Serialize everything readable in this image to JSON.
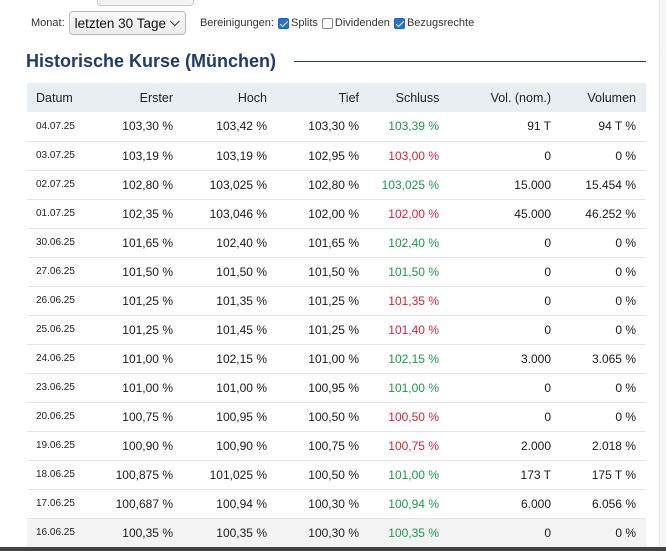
{
  "controls": {
    "monat_label": "Monat:",
    "monat_value": "letzten 30 Tage",
    "bereinigungen_label": "Bereinigungen:",
    "splits_label": "Splits",
    "splits_checked": true,
    "dividenden_label": "Dividenden",
    "dividenden_checked": false,
    "bezugsrechte_label": "Bezugsrechte",
    "bezugsrechte_checked": true
  },
  "heading": "Historische Kurse (München)",
  "colors": {
    "heading": "#1d3c6a",
    "up": "#1a9a49",
    "down": "#d8233a",
    "header_bg": "#e9eef3",
    "checkbox_on": "#1a73e8"
  },
  "table": {
    "columns": [
      "Datum",
      "Erster",
      "Hoch",
      "Tief",
      "Schluss",
      "Vol. (nom.)",
      "Volumen"
    ],
    "rows": [
      {
        "date": "04.07.25",
        "open": "103,30 %",
        "high": "103,42 %",
        "low": "103,30 %",
        "close": "103,39 %",
        "trend": "up",
        "vol_nom": "91 T",
        "volume": "94 T %"
      },
      {
        "date": "03.07.25",
        "open": "103,19 %",
        "high": "103,19 %",
        "low": "102,95 %",
        "close": "103,00 %",
        "trend": "down",
        "vol_nom": "0",
        "volume": "0 %"
      },
      {
        "date": "02.07.25",
        "open": "102,80 %",
        "high": "103,025 %",
        "low": "102,80 %",
        "close": "103,025 %",
        "trend": "up",
        "vol_nom": "15.000",
        "volume": "15.454 %"
      },
      {
        "date": "01.07.25",
        "open": "102,35 %",
        "high": "103,046 %",
        "low": "102,00 %",
        "close": "102,00 %",
        "trend": "down",
        "vol_nom": "45.000",
        "volume": "46.252 %"
      },
      {
        "date": "30.06.25",
        "open": "101,65 %",
        "high": "102,40 %",
        "low": "101,65 %",
        "close": "102,40 %",
        "trend": "up",
        "vol_nom": "0",
        "volume": "0 %"
      },
      {
        "date": "27.06.25",
        "open": "101,50 %",
        "high": "101,50 %",
        "low": "101,50 %",
        "close": "101,50 %",
        "trend": "up",
        "vol_nom": "0",
        "volume": "0 %"
      },
      {
        "date": "26.06.25",
        "open": "101,25 %",
        "high": "101,35 %",
        "low": "101,25 %",
        "close": "101,35 %",
        "trend": "down",
        "vol_nom": "0",
        "volume": "0 %"
      },
      {
        "date": "25.06.25",
        "open": "101,25 %",
        "high": "101,45 %",
        "low": "101,25 %",
        "close": "101,40 %",
        "trend": "down",
        "vol_nom": "0",
        "volume": "0 %"
      },
      {
        "date": "24.06.25",
        "open": "101,00 %",
        "high": "102,15 %",
        "low": "101,00 %",
        "close": "102,15 %",
        "trend": "up",
        "vol_nom": "3.000",
        "volume": "3.065 %"
      },
      {
        "date": "23.06.25",
        "open": "101,00 %",
        "high": "101,00 %",
        "low": "100,95 %",
        "close": "101,00 %",
        "trend": "up",
        "vol_nom": "0",
        "volume": "0 %"
      },
      {
        "date": "20.06.25",
        "open": "100,75 %",
        "high": "100,95 %",
        "low": "100,50 %",
        "close": "100,50 %",
        "trend": "down",
        "vol_nom": "0",
        "volume": "0 %"
      },
      {
        "date": "19.06.25",
        "open": "100,90 %",
        "high": "100,90 %",
        "low": "100,75 %",
        "close": "100,75 %",
        "trend": "down",
        "vol_nom": "2.000",
        "volume": "2.018 %"
      },
      {
        "date": "18.06.25",
        "open": "100,875 %",
        "high": "101,025 %",
        "low": "100,50 %",
        "close": "101,00 %",
        "trend": "up",
        "vol_nom": "173 T",
        "volume": "175 T %"
      },
      {
        "date": "17.06.25",
        "open": "100,687 %",
        "high": "100,94 %",
        "low": "100,30 %",
        "close": "100,94 %",
        "trend": "up",
        "vol_nom": "6.000",
        "volume": "6.056 %"
      },
      {
        "date": "16.06.25",
        "open": "100,35 %",
        "high": "100,35 %",
        "low": "100,30 %",
        "close": "100,35 %",
        "trend": "up",
        "vol_nom": "0",
        "volume": "0 %"
      }
    ]
  }
}
